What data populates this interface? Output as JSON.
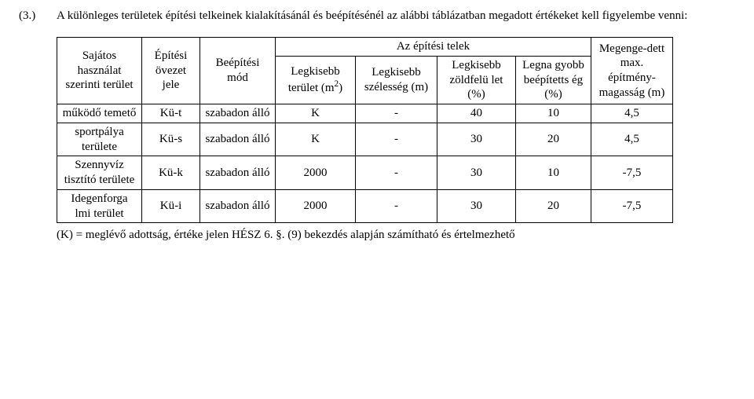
{
  "paragraph": {
    "num": "(3.)",
    "text": "A különleges területek építési telkeinek kialakításánál és beépítésénél az alábbi táblázatban megadott értékeket kell figyelembe venni:"
  },
  "table": {
    "header": {
      "row1": "Sajátos használat szerinti terület",
      "col1": "Építési övezet jele",
      "col2": "Beépítési mód",
      "span_top": "Az építési telek",
      "col3": "Legkisebb terület (m",
      "col3_sup": "2",
      "col3_tail": ")",
      "col4": "Legkisebb szélesség (m)",
      "col5": "Legkisebb zöldfelü let (%)",
      "col6": "Legna gyobb beépítetts ég (%)",
      "col7": "Megenge-dett max. építmény-magasság (m)"
    },
    "rows": [
      {
        "label": "működő temető",
        "jele": "Kü-t",
        "mod": "szabadon álló",
        "a": "K",
        "b": "-",
        "c": "40",
        "d": "10",
        "e": "4,5"
      },
      {
        "label": "sportpálya területe",
        "jele": "Kü-s",
        "mod": "szabadon álló",
        "a": "K",
        "b": "-",
        "c": "30",
        "d": "20",
        "e": "4,5"
      },
      {
        "label": "Szennyvíz tisztító területe",
        "jele": "Kü-k",
        "mod": "szabadon álló",
        "a": "2000",
        "b": "-",
        "c": "30",
        "d": "10",
        "e": "-7,5"
      },
      {
        "label": "Idegenforga lmi terület",
        "jele": "Kü-i",
        "mod": "szabadon álló",
        "a": "2000",
        "b": "-",
        "c": "30",
        "d": "20",
        "e": "-7,5"
      }
    ]
  },
  "footnote": "(K) = meglévő adottság, értéke jelen HÉSZ 6. §. (9) bekezdés alapján számítható és értelmezhető"
}
